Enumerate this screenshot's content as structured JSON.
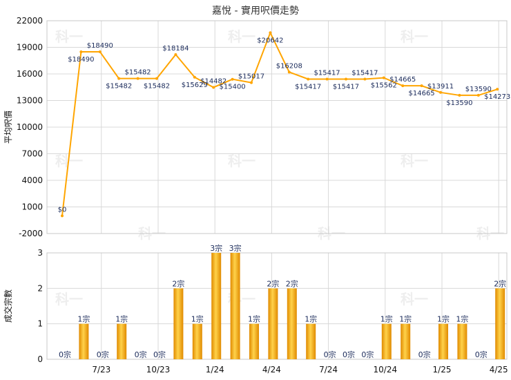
{
  "chart_data": [
    {
      "type": "line",
      "title": "嘉悅 - 實用呎價走勢",
      "ylabel": "平均呎價",
      "ylim": [
        -2000,
        22000
      ],
      "yticks": [
        -2000,
        1000,
        4000,
        7000,
        10000,
        13000,
        16000,
        19000,
        22000
      ],
      "grid": true,
      "color": "#ffa500",
      "values": [
        0,
        18490,
        18490,
        15482,
        15482,
        15482,
        18184,
        15629,
        14482,
        15400,
        15017,
        20642,
        16208,
        15417,
        15417,
        15417,
        15417,
        15562,
        14665,
        14665,
        13911,
        13590,
        13590,
        14273
      ],
      "labels": [
        "$0",
        "$18490",
        "$18490",
        "$15482",
        "$15482",
        "$15482",
        "$18184",
        "$15629",
        "$14482",
        "$15400",
        "$15017",
        "$20642",
        "$16208",
        "$15417",
        "$15417",
        "$15417",
        "$15417",
        "$15562",
        "$14665",
        "$14665",
        "$13911",
        "$13590",
        "$13590",
        "$14273"
      ]
    },
    {
      "type": "bar",
      "ylabel": "成交宗數",
      "ylim": [
        0,
        3
      ],
      "yticks": [
        0,
        1,
        2,
        3
      ],
      "grid": true,
      "color": "#ffa500",
      "values": [
        0,
        1,
        0,
        1,
        0,
        0,
        2,
        1,
        3,
        3,
        1,
        2,
        2,
        1,
        0,
        0,
        0,
        1,
        1,
        0,
        1,
        1,
        0,
        2
      ],
      "labels": [
        "0宗",
        "1宗",
        "0宗",
        "1宗",
        "0宗",
        "0宗",
        "2宗",
        "1宗",
        "3宗",
        "3宗",
        "1宗",
        "2宗",
        "2宗",
        "1宗",
        "0宗",
        "0宗",
        "0宗",
        "1宗",
        "1宗",
        "0宗",
        "1宗",
        "1宗",
        "0宗",
        "2宗"
      ]
    }
  ],
  "x_ticks": [
    {
      "index": 2,
      "label": "7/23"
    },
    {
      "index": 5,
      "label": "10/23"
    },
    {
      "index": 8,
      "label": "1/24"
    },
    {
      "index": 11,
      "label": "4/24"
    },
    {
      "index": 14,
      "label": "7/24"
    },
    {
      "index": 17,
      "label": "10/24"
    },
    {
      "index": 20,
      "label": "1/25"
    },
    {
      "index": 23,
      "label": "4/25"
    }
  ],
  "watermark": "科一"
}
